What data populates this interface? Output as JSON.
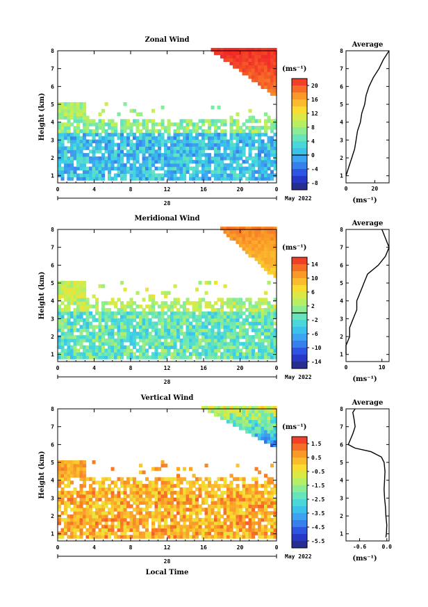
{
  "chart_data": [
    {
      "type": "heatmap",
      "title": "Zonal Wind",
      "ylabel": "Height (km)",
      "xlabel": "",
      "x_ticks": [
        "0",
        "4",
        "8",
        "12",
        "16",
        "20",
        "0"
      ],
      "y_ticks": [
        "1",
        "2",
        "3",
        "4",
        "5",
        "6",
        "7",
        "8"
      ],
      "ylim": [
        0.6,
        8.0
      ],
      "xlim": [
        0,
        24
      ],
      "date_label": "28",
      "month_label": "May 2022",
      "colorbar": {
        "unit": "(ms⁻¹)",
        "ticks": [
          "20",
          "16",
          "12",
          "8",
          "4",
          "0",
          "-4",
          "-8"
        ],
        "range": [
          -10,
          22
        ],
        "zero_line": 0
      },
      "field": {
        "low_value": 1,
        "mid_value": 7,
        "top_value": 22,
        "top_start_hour": 16.5,
        "top_start_height": 8.0,
        "top_slope_height": 5.2
      },
      "profile": {
        "title": "Average",
        "x_ticks": [
          "0",
          "20"
        ],
        "xlim": [
          0,
          30
        ],
        "xlabel": "(ms⁻¹)",
        "heights": [
          1.0,
          1.5,
          2.0,
          2.5,
          3.0,
          3.5,
          4.0,
          4.5,
          5.0,
          5.5,
          6.0,
          6.5,
          7.0,
          7.5,
          8.0
        ],
        "values": [
          0,
          2,
          4,
          6,
          7,
          8,
          10,
          11,
          13,
          14,
          16,
          19,
          23,
          26,
          30
        ]
      }
    },
    {
      "type": "heatmap",
      "title": "Meridional Wind",
      "ylabel": "Height (km)",
      "xlabel": "",
      "x_ticks": [
        "0",
        "4",
        "8",
        "12",
        "16",
        "20",
        "0"
      ],
      "y_ticks": [
        "1",
        "2",
        "3",
        "4",
        "5",
        "6",
        "7",
        "8"
      ],
      "ylim": [
        0.6,
        8.0
      ],
      "xlim": [
        0,
        24
      ],
      "date_label": "28",
      "month_label": "May 2022",
      "colorbar": {
        "unit": "(ms⁻¹)",
        "ticks": [
          "14",
          "10",
          "6",
          "2",
          "-2",
          "-6",
          "-10",
          "-14"
        ],
        "range": [
          -16,
          16
        ],
        "zero_line": 0
      },
      "field": {
        "low_value": -1,
        "mid_value": 3,
        "top_value": 12,
        "top_start_hour": 17.5,
        "top_start_height": 8.0,
        "top_slope_height": 5.0
      },
      "profile": {
        "title": "Average",
        "x_ticks": [
          "0",
          "10"
        ],
        "xlim": [
          0,
          12
        ],
        "xlabel": "(ms⁻¹)",
        "heights": [
          1.0,
          1.5,
          2.0,
          2.5,
          3.0,
          3.5,
          4.0,
          4.5,
          5.0,
          5.5,
          6.0,
          6.5,
          7.0,
          7.5,
          8.0
        ],
        "values": [
          0,
          0,
          1,
          1,
          2,
          3,
          3,
          4,
          5,
          6,
          9,
          11,
          12,
          11,
          10
        ]
      }
    },
    {
      "type": "heatmap",
      "title": "Vertical Wind",
      "ylabel": "Height (km)",
      "xlabel": "Local Time",
      "x_ticks": [
        "0",
        "4",
        "8",
        "12",
        "16",
        "20",
        "0"
      ],
      "y_ticks": [
        "1",
        "2",
        "3",
        "4",
        "5",
        "6",
        "7",
        "8"
      ],
      "ylim": [
        0.6,
        8.0
      ],
      "xlim": [
        0,
        24
      ],
      "date_label": "28",
      "month_label": "May 2022",
      "colorbar": {
        "unit": "(ms⁻¹)",
        "ticks": [
          "1.5",
          "0.5",
          "-0.5",
          "-1.5",
          "-2.5",
          "-3.5",
          "-4.5",
          "-5.5"
        ],
        "range": [
          -6,
          2
        ],
        "zero_line": null
      },
      "field": {
        "low_value": 0.4,
        "mid_value": 0.3,
        "top_value": -0.9,
        "top_start_hour": 15.5,
        "top_start_height": 8.0,
        "top_slope_height": 5.6
      },
      "profile": {
        "title": "Average",
        "x_ticks": [
          "-0.6",
          "0.0"
        ],
        "xlim": [
          -0.9,
          0.05
        ],
        "xlabel": "(ms⁻¹)",
        "heights": [
          0.8,
          1.0,
          1.5,
          2.0,
          2.5,
          3.0,
          3.5,
          4.0,
          4.5,
          5.0,
          5.3,
          5.6,
          5.8,
          6.0,
          6.3,
          6.6,
          7.0,
          7.4,
          7.8,
          8.0
        ],
        "values": [
          -0.02,
          -0.01,
          0.0,
          -0.02,
          -0.03,
          -0.05,
          -0.06,
          -0.05,
          -0.04,
          -0.06,
          -0.12,
          -0.35,
          -0.7,
          -0.85,
          -0.8,
          -0.75,
          -0.7,
          -0.72,
          -0.75,
          -0.7
        ]
      }
    }
  ]
}
